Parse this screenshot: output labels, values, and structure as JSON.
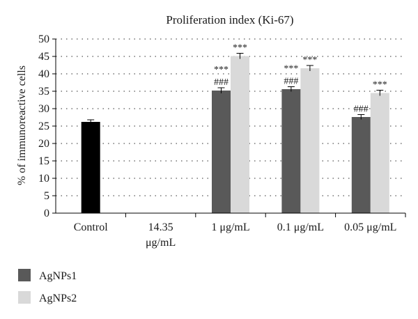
{
  "chart_data": {
    "type": "bar",
    "title": "Proliferation index (Ki-67)",
    "ylabel": "% of immunoreactive cells",
    "xlabel": "",
    "ylim": [
      0,
      50
    ],
    "ytick_step": 5,
    "yticks": [
      "0",
      "5",
      "10",
      "15",
      "20",
      "25",
      "30",
      "35",
      "40",
      "45",
      "50"
    ],
    "grid": "horizontal dotted",
    "categories": [
      {
        "lines": [
          "Control"
        ]
      },
      {
        "lines": [
          "14.35",
          "μg/mL"
        ]
      },
      {
        "lines": [
          "1 μg/mL"
        ]
      },
      {
        "lines": [
          "0.1 μg/mL"
        ]
      },
      {
        "lines": [
          "0.05 μg/mL"
        ]
      }
    ],
    "control": {
      "value": 26.2,
      "error": 0.6,
      "color": "#000000"
    },
    "series": [
      {
        "name": "AgNPs1",
        "color": "#595959",
        "values": [
          null,
          null,
          35.2,
          35.6,
          27.6
        ],
        "errors": [
          null,
          null,
          0.8,
          0.7,
          0.7
        ],
        "annotations": [
          [],
          [],
          [
            "***",
            "###"
          ],
          [
            "***",
            "###"
          ],
          [
            "###"
          ]
        ]
      },
      {
        "name": "AgNPs2",
        "color": "#d9d9d9",
        "values": [
          null,
          null,
          45.1,
          41.6,
          34.5
        ],
        "errors": [
          null,
          null,
          0.8,
          0.8,
          0.8
        ],
        "annotations": [
          [],
          [],
          [
            "***"
          ],
          [
            "***"
          ],
          [
            "***"
          ]
        ]
      }
    ],
    "legend_position": "bottom-left"
  }
}
